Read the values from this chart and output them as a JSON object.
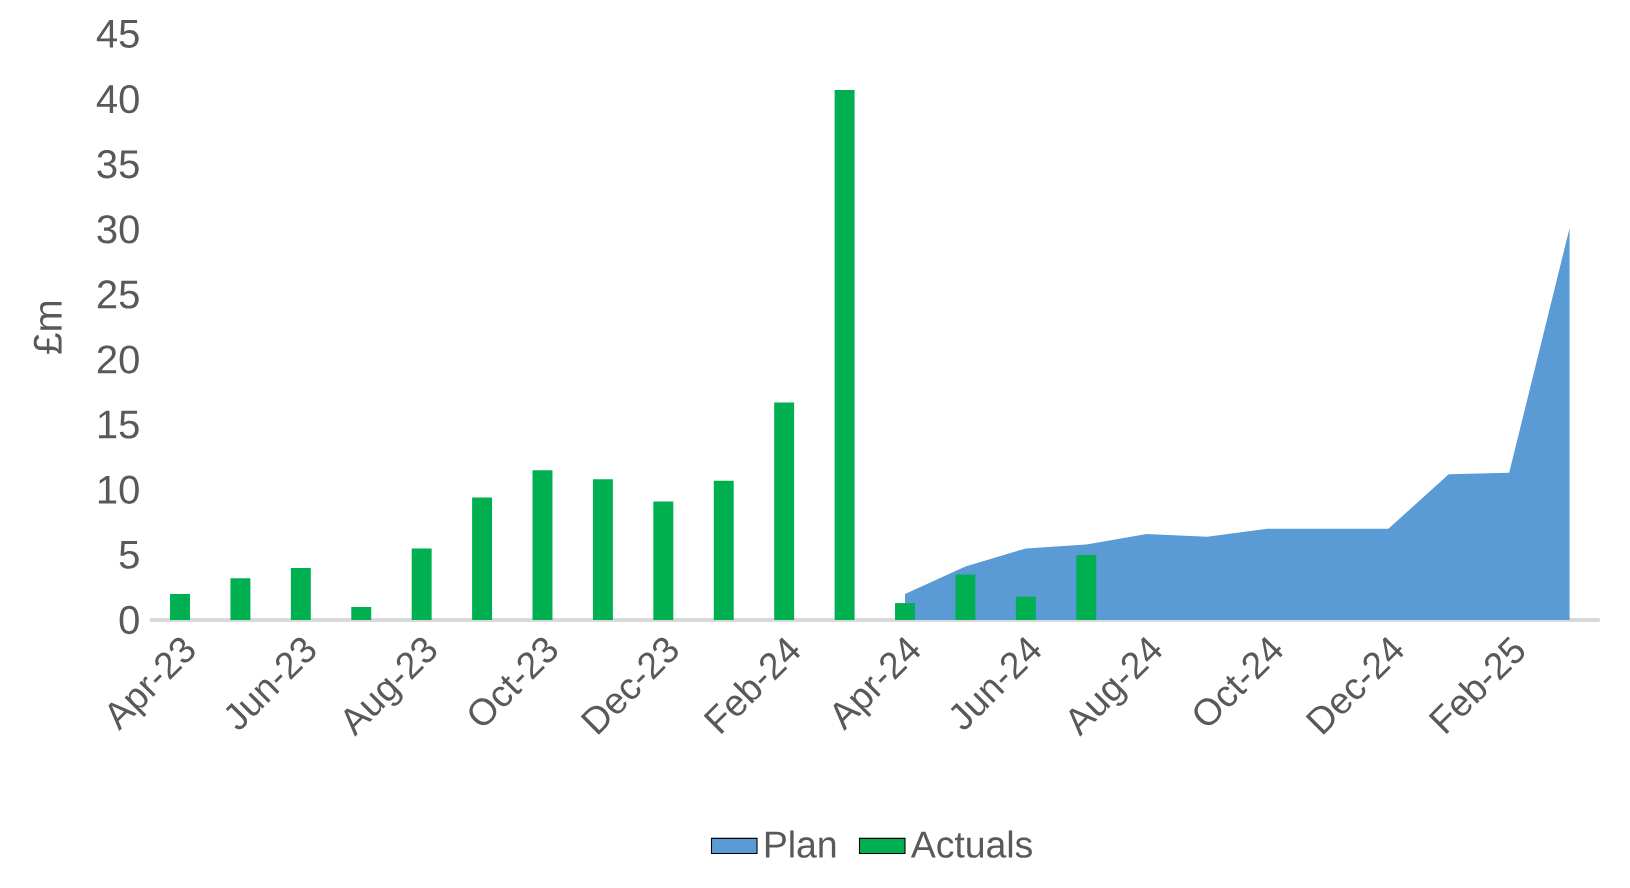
{
  "chart_data": {
    "type": "bar",
    "ylabel": "£m",
    "categories": [
      "Apr-23",
      null,
      "Jun-23",
      null,
      "Aug-23",
      null,
      "Oct-23",
      null,
      "Dec-23",
      null,
      "Feb-24",
      null,
      "Apr-24",
      null,
      "Jun-24",
      null,
      "Aug-24",
      null,
      "Oct-24",
      null,
      "Dec-24",
      null,
      "Feb-25",
      null
    ],
    "series": [
      {
        "name": "Plan",
        "type": "area",
        "color": "#5b9bd5",
        "values": [
          null,
          null,
          null,
          null,
          null,
          null,
          null,
          null,
          null,
          null,
          null,
          null,
          2.0,
          4.1,
          5.5,
          5.8,
          6.6,
          6.4,
          7.0,
          7.0,
          7.0,
          11.2,
          11.3,
          30.1
        ]
      },
      {
        "name": "Actuals",
        "color": "#00b050",
        "values": [
          2.0,
          3.2,
          4.0,
          1.0,
          5.5,
          9.4,
          11.5,
          10.8,
          9.1,
          10.7,
          16.7,
          40.7,
          1.3,
          3.5,
          1.8,
          5.0,
          null,
          null,
          null,
          null,
          null,
          null,
          null,
          null
        ]
      }
    ],
    "ylim": [
      0,
      45
    ],
    "yticks": [
      0,
      5,
      10,
      15,
      20,
      25,
      30,
      35,
      40,
      45
    ],
    "legend": "bottom"
  }
}
